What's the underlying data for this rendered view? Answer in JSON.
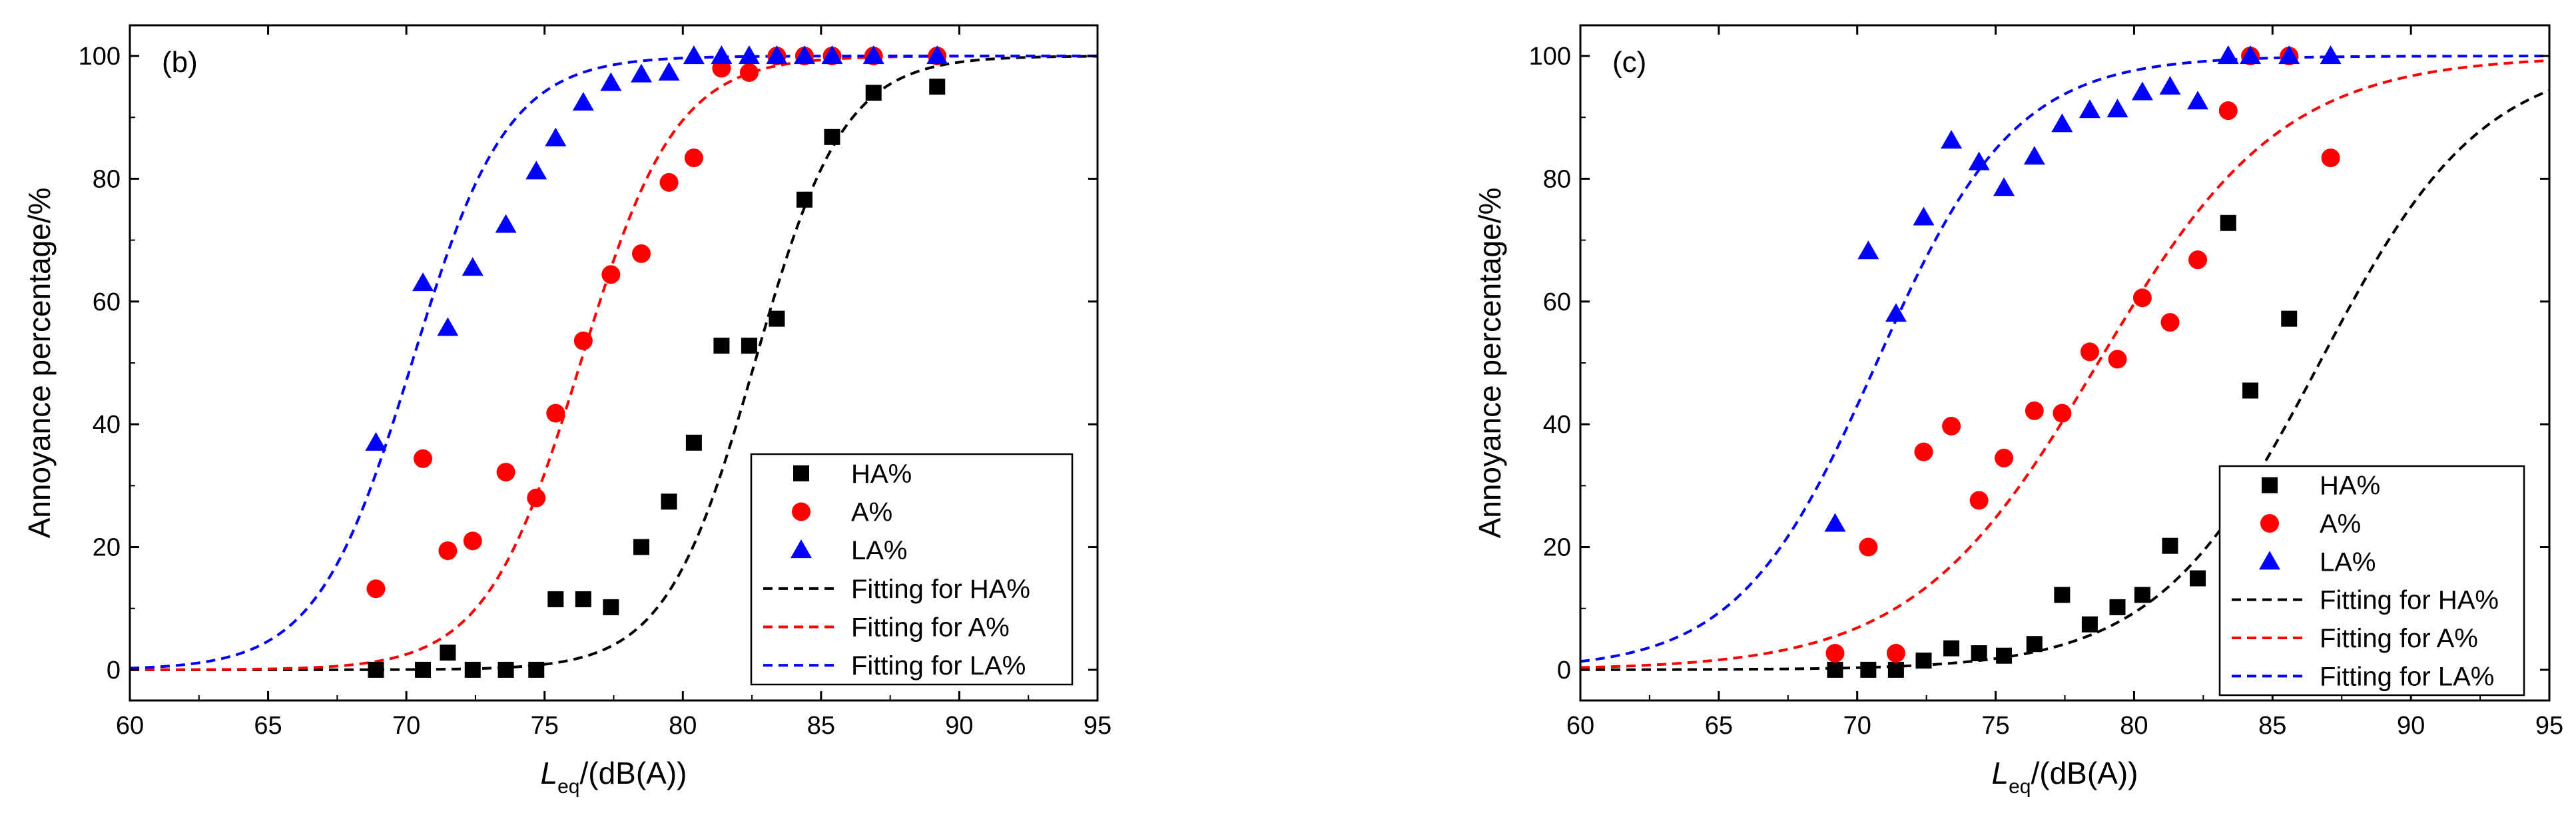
{
  "chart_data": [
    {
      "type": "scatter",
      "panel_label": "(b)",
      "xlabel_main": "L",
      "xlabel_sub": "eq",
      "xlabel_rest": "/(dB(A))",
      "ylabel": "Annoyance percentage/%",
      "xlim": [
        60,
        95
      ],
      "ylim": [
        -5,
        105
      ],
      "x_ticks": [
        60,
        65,
        70,
        75,
        80,
        85,
        90,
        95
      ],
      "y_ticks": [
        0,
        20,
        40,
        60,
        80,
        100
      ],
      "legend": [
        "HA%",
        "A%",
        "LA%",
        "Fitting for HA%",
        "Fitting for A%",
        "Fitting for LA%"
      ],
      "series": [
        {
          "name": "HA%",
          "marker": "square",
          "color": "#000000",
          "x": [
            68.9,
            70.6,
            71.5,
            72.4,
            73.6,
            74.7,
            75.4,
            76.4,
            77.4,
            78.5,
            79.5,
            80.4,
            81.4,
            82.4,
            83.4,
            84.4,
            85.4,
            86.9,
            89.2
          ],
          "y": [
            0,
            0,
            2.8,
            0,
            0,
            0,
            11.5,
            11.5,
            10.2,
            20,
            27.4,
            37,
            52.8,
            52.8,
            57.2,
            76.6,
            86.8,
            94,
            95
          ]
        },
        {
          "name": "A%",
          "marker": "circle",
          "color": "#ff0000",
          "x": [
            68.9,
            70.6,
            71.5,
            72.4,
            73.6,
            74.7,
            75.4,
            76.4,
            77.4,
            78.5,
            79.5,
            80.4,
            81.4,
            82.4,
            83.4,
            84.4,
            85.4,
            86.9,
            89.2
          ],
          "y": [
            13.2,
            34.4,
            19.4,
            21,
            32.2,
            28,
            41.8,
            53.6,
            64.4,
            67.8,
            79.4,
            83.4,
            98,
            97.3,
            100,
            100,
            100,
            100,
            100
          ]
        },
        {
          "name": "LA%",
          "marker": "triangle",
          "color": "#0000ff",
          "x": [
            68.9,
            70.6,
            71.5,
            72.4,
            73.6,
            74.7,
            75.4,
            76.4,
            77.4,
            78.5,
            79.5,
            80.4,
            81.4,
            82.4,
            83.4,
            84.4,
            85.4,
            86.9,
            89.2
          ],
          "y": [
            37,
            63,
            55.7,
            65.5,
            72.5,
            81.2,
            86.6,
            92.4,
            95.6,
            97,
            97.3,
            100,
            100,
            100,
            100,
            100,
            100,
            100,
            100
          ]
        }
      ],
      "fits": [
        {
          "name": "Fitting for HA%",
          "color": "#000000",
          "x0": 82.6,
          "k": 0.62
        },
        {
          "name": "Fitting for A%",
          "color": "#ff0000",
          "x0": 76.3,
          "k": 0.58
        },
        {
          "name": "Fitting for LA%",
          "color": "#0000ff",
          "x0": 70.2,
          "k": 0.58
        }
      ]
    },
    {
      "type": "scatter",
      "panel_label": "(c)",
      "xlabel_main": "L",
      "xlabel_sub": "eq",
      "xlabel_rest": "/(dB(A))",
      "ylabel": "Annoyance percentage/%",
      "xlim": [
        60,
        95
      ],
      "ylim": [
        -5,
        105
      ],
      "x_ticks": [
        60,
        65,
        70,
        75,
        80,
        85,
        90,
        95
      ],
      "y_ticks": [
        0,
        20,
        40,
        60,
        80,
        100
      ],
      "legend": [
        "HA%",
        "A%",
        "LA%",
        "Fitting for HA%",
        "Fitting for A%",
        "Fitting for LA%"
      ],
      "series": [
        {
          "name": "HA%",
          "marker": "square",
          "color": "#000000",
          "x": [
            69.2,
            70.4,
            71.4,
            72.4,
            73.4,
            74.4,
            75.3,
            76.4,
            77.4,
            78.4,
            79.4,
            80.3,
            81.3,
            82.3,
            83.4,
            84.2,
            85.6
          ],
          "y": [
            0,
            0,
            0,
            1.5,
            3.5,
            2.7,
            2.3,
            4.2,
            12.2,
            7.4,
            10.2,
            12.2,
            20.2,
            14.9,
            72.8,
            45.5,
            57.2
          ]
        },
        {
          "name": "A%",
          "marker": "circle",
          "color": "#ff0000",
          "x": [
            69.2,
            70.4,
            71.4,
            72.4,
            73.4,
            74.4,
            75.3,
            76.4,
            77.4,
            78.4,
            79.4,
            80.3,
            81.3,
            82.3,
            83.4,
            84.2,
            85.6,
            87.1
          ],
          "y": [
            2.7,
            20,
            2.7,
            35.5,
            39.7,
            27.6,
            34.5,
            42.2,
            41.8,
            51.8,
            50.6,
            60.6,
            56.6,
            66.8,
            91.1,
            100,
            100,
            83.4
          ]
        },
        {
          "name": "LA%",
          "marker": "triangle",
          "color": "#0000ff",
          "x": [
            69.2,
            70.4,
            71.4,
            72.4,
            73.4,
            74.4,
            75.3,
            76.4,
            77.4,
            78.4,
            79.4,
            80.3,
            81.3,
            82.3,
            83.4,
            84.2,
            85.6,
            87.1
          ],
          "y": [
            23.8,
            68.2,
            58,
            73.7,
            86.2,
            82.7,
            78.5,
            83.6,
            88.9,
            91.2,
            91.3,
            94.1,
            95,
            92.6,
            100,
            100,
            100,
            100
          ]
        }
      ],
      "fits": [
        {
          "name": "Fitting for HA%",
          "color": "#000000",
          "x0": 86.7,
          "k": 0.34
        },
        {
          "name": "Fitting for A%",
          "color": "#ff0000",
          "x0": 78.7,
          "k": 0.3
        },
        {
          "name": "Fitting for LA%",
          "color": "#0000ff",
          "x0": 70.7,
          "k": 0.4
        }
      ]
    }
  ]
}
